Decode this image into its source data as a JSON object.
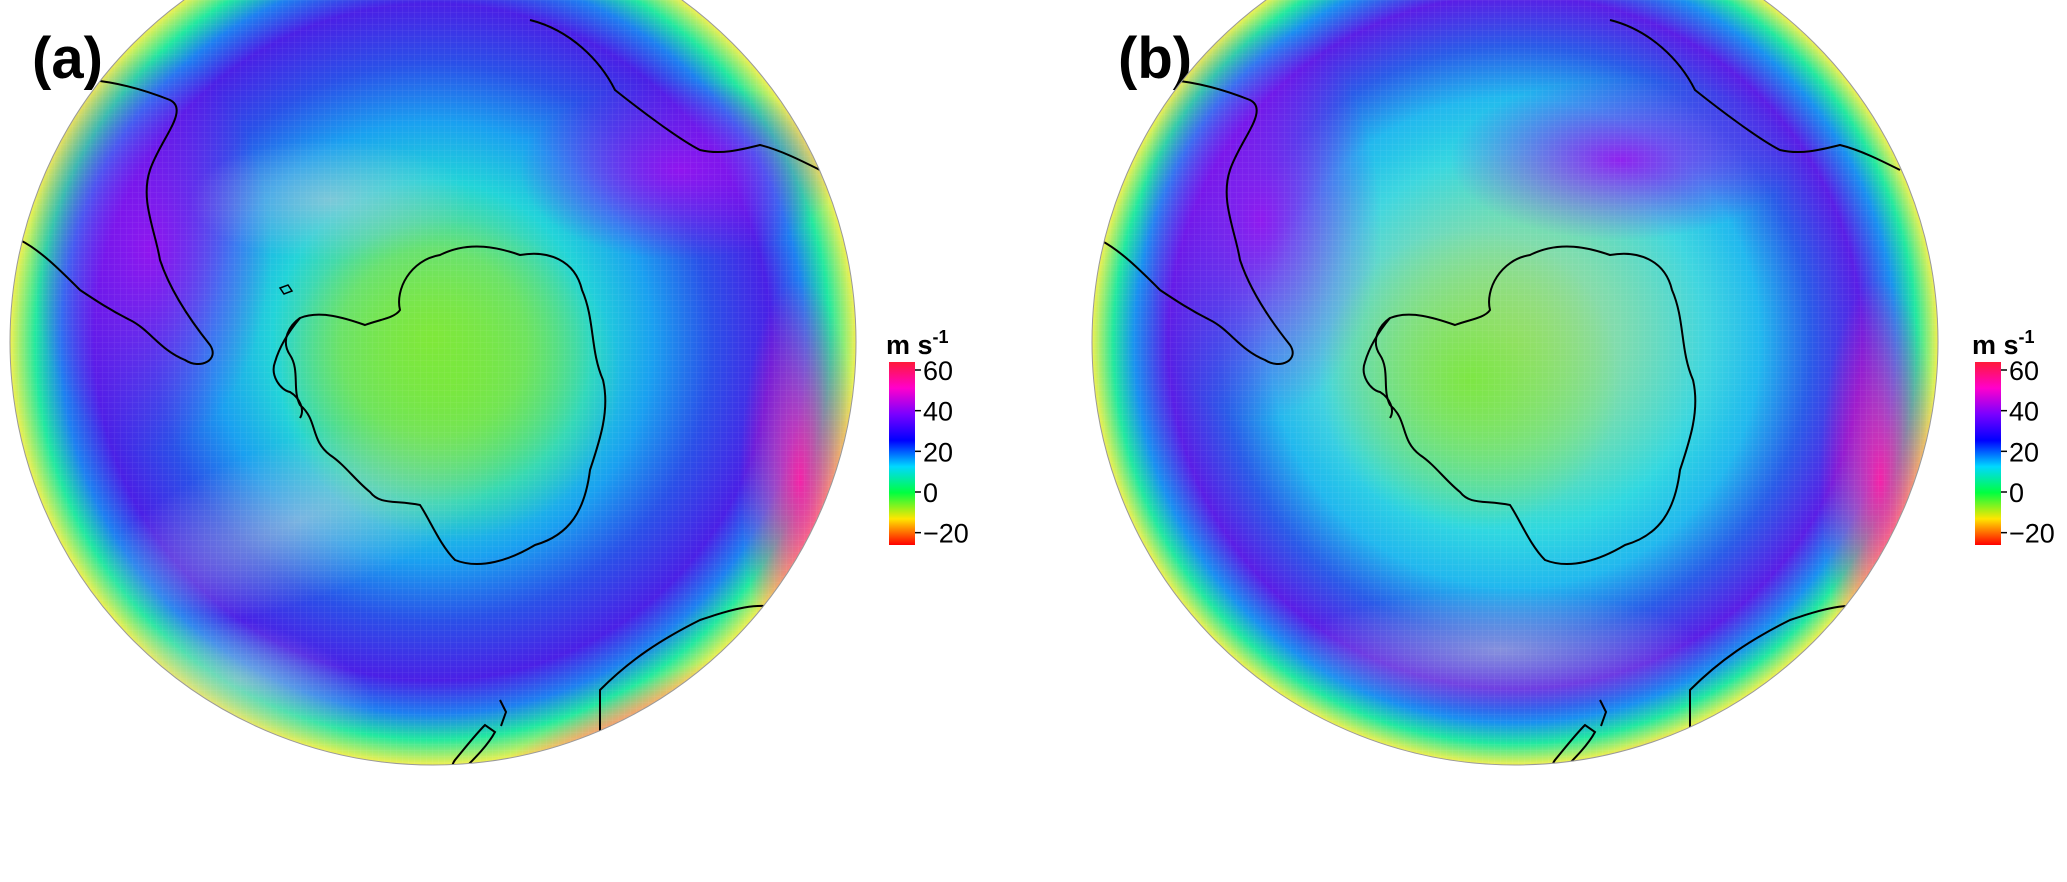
{
  "panels": [
    {
      "label": "(a)"
    },
    {
      "label": "(b)"
    }
  ],
  "colorbar": {
    "unit_main": "m s",
    "unit_exp": "-1",
    "ticks": [
      "60",
      "40",
      "20",
      "0",
      "−20"
    ],
    "colors": [
      "#ff1a3a",
      "#ff00cc",
      "#7a00ff",
      "#0000ff",
      "#00d8ff",
      "#00ff40",
      "#ffe600",
      "#ff0000"
    ]
  },
  "colors": {
    "land_outline": "#000000",
    "background": "#ffffff"
  }
}
